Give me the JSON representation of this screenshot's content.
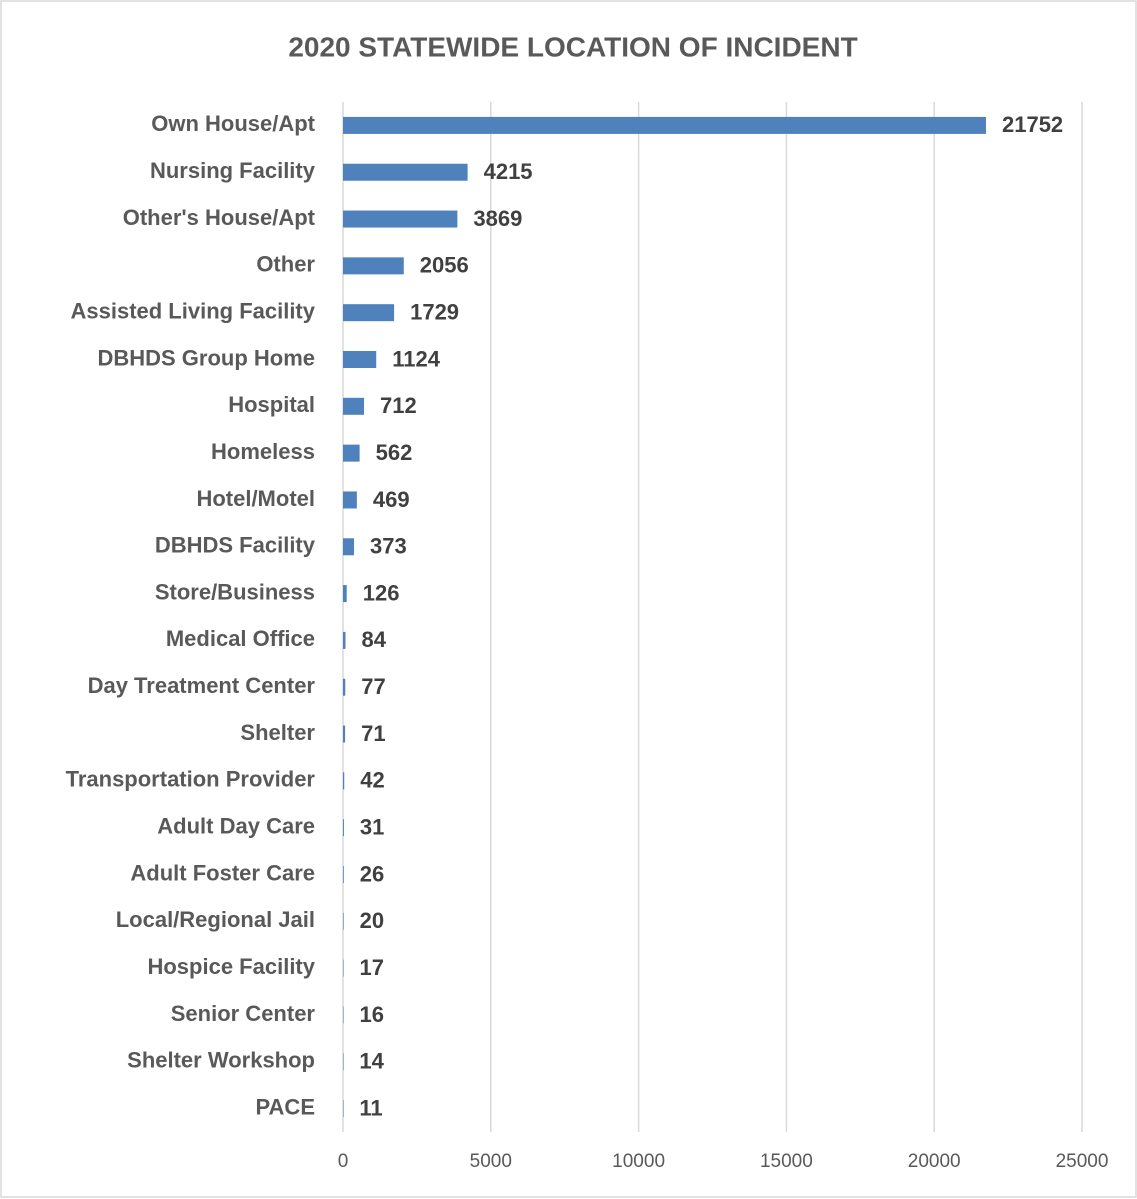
{
  "chart_data": {
    "type": "bar",
    "orientation": "horizontal",
    "title": "2020 STATEWIDE LOCATION OF INCIDENT",
    "categories": [
      "Own House/Apt",
      "Nursing Facility",
      "Other's House/Apt",
      "Other",
      "Assisted Living Facility",
      "DBHDS Group Home",
      "Hospital",
      "Homeless",
      "Hotel/Motel",
      "DBHDS Facility",
      "Store/Business",
      "Medical Office",
      "Day Treatment Center",
      "Shelter",
      "Transportation Provider",
      "Adult Day Care",
      "Adult Foster Care",
      "Local/Regional Jail",
      "Hospice Facility",
      "Senior Center",
      "Shelter Workshop",
      "PACE"
    ],
    "values": [
      21752,
      4215,
      3869,
      2056,
      1729,
      1124,
      712,
      562,
      469,
      373,
      126,
      84,
      77,
      71,
      42,
      31,
      26,
      20,
      17,
      16,
      14,
      11
    ],
    "color": "#4f81bd",
    "xlim": [
      0,
      25000
    ],
    "xticks": [
      0,
      5000,
      10000,
      15000,
      20000,
      25000
    ],
    "grid": true
  }
}
